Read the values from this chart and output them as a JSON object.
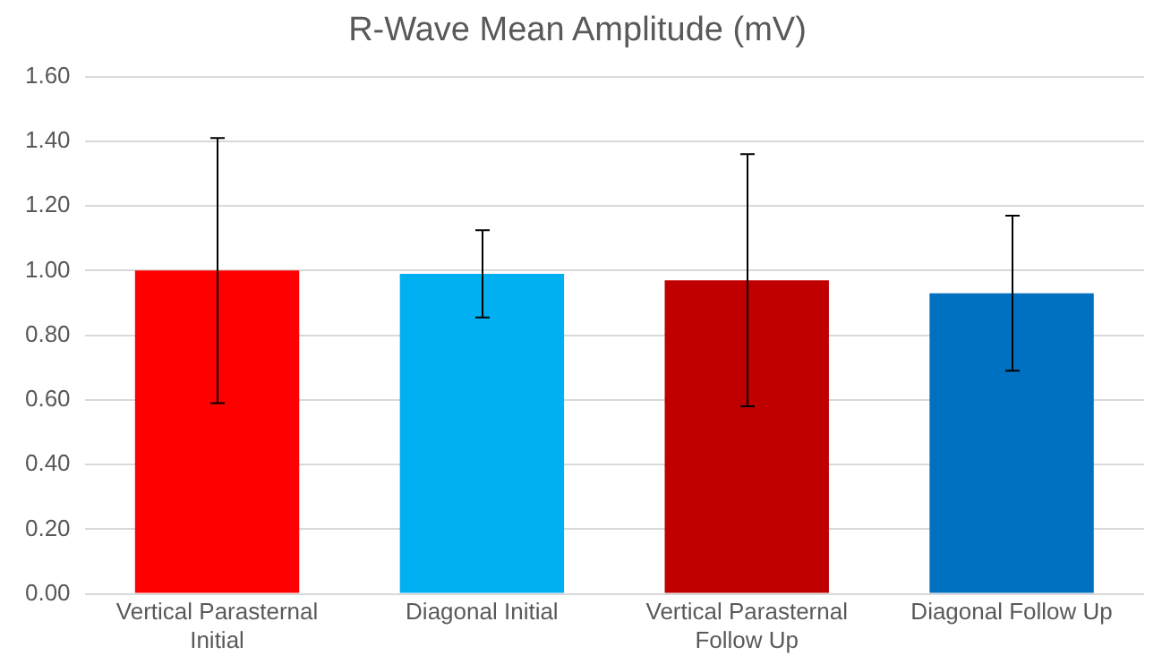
{
  "chart_data": {
    "type": "bar",
    "title": "R-Wave Mean Amplitude (mV)",
    "categories": [
      "Vertical Parasternal Initial",
      "Diagonal Initial",
      "Vertical Parasternal Follow Up",
      "Diagonal Follow Up"
    ],
    "values": [
      1.0,
      0.99,
      0.97,
      0.93
    ],
    "colors": [
      "#ff0000",
      "#00b0f0",
      "#c00000",
      "#0070c0"
    ],
    "errors": [
      0.41,
      0.135,
      0.39,
      0.24
    ],
    "ylim": [
      0,
      1.6
    ],
    "yticks": [
      {
        "value": 0,
        "label": "0.00"
      },
      {
        "value": 0.2,
        "label": "0.20"
      },
      {
        "value": 0.4,
        "label": "0.40"
      },
      {
        "value": 0.6,
        "label": "0.60"
      },
      {
        "value": 0.8,
        "label": "0.80"
      },
      {
        "value": 1,
        "label": "1.00"
      },
      {
        "value": 1.2,
        "label": "1.20"
      },
      {
        "value": 1.4,
        "label": "1.40"
      },
      {
        "value": 1.6,
        "label": "1.60"
      }
    ],
    "grid": "y",
    "legend": false
  }
}
